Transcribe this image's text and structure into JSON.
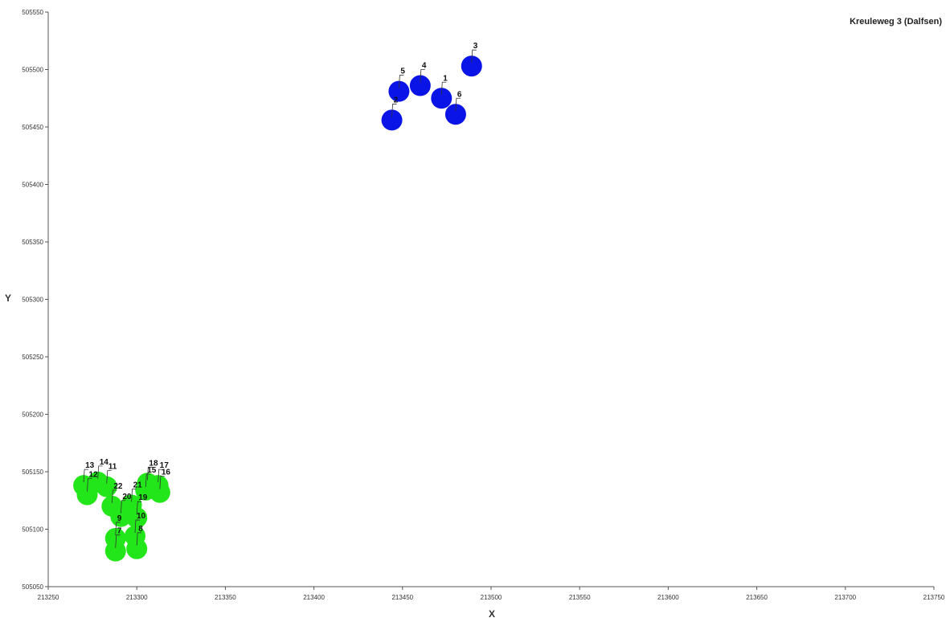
{
  "chart_data": {
    "type": "scatter",
    "title": "Kreuleweg 3 (Dalfsen)",
    "xlabel": "X",
    "ylabel": "Y",
    "xlim": [
      213250,
      213750
    ],
    "ylim": [
      505050,
      505550
    ],
    "xticks": [
      "213250",
      "213300",
      "213350",
      "213400",
      "213450",
      "213500",
      "213550",
      "213600",
      "213650",
      "213700",
      "213750"
    ],
    "yticks": [
      "505050",
      "505100",
      "505150",
      "505200",
      "505250",
      "505300",
      "505350",
      "505400",
      "505450",
      "505500",
      "505550"
    ],
    "grid": false,
    "legend": "none",
    "series": [
      {
        "color": "#0a14e6",
        "points": [
          {
            "label": "1",
            "x": 213472,
            "y": 505475
          },
          {
            "label": "2",
            "x": 213444,
            "y": 505456
          },
          {
            "label": "3",
            "x": 213489,
            "y": 505503
          },
          {
            "label": "4",
            "x": 213460,
            "y": 505486
          },
          {
            "label": "5",
            "x": 213448,
            "y": 505481
          },
          {
            "label": "6",
            "x": 213480,
            "y": 505461
          }
        ]
      },
      {
        "color": "#22e61a",
        "points": [
          {
            "label": "7",
            "x": 213288,
            "y": 505081
          },
          {
            "label": "8",
            "x": 213300,
            "y": 505083
          },
          {
            "label": "9",
            "x": 213288,
            "y": 505092
          },
          {
            "label": "10",
            "x": 213299,
            "y": 505094
          },
          {
            "label": "11",
            "x": 213283,
            "y": 505137
          },
          {
            "label": "12",
            "x": 213272,
            "y": 505130
          },
          {
            "label": "13",
            "x": 213270,
            "y": 505138
          },
          {
            "label": "14",
            "x": 213278,
            "y": 505141
          },
          {
            "label": "15",
            "x": 213305,
            "y": 505134
          },
          {
            "label": "16",
            "x": 213313,
            "y": 505132
          },
          {
            "label": "17",
            "x": 213312,
            "y": 505138
          },
          {
            "label": "18",
            "x": 213306,
            "y": 505140
          },
          {
            "label": "19",
            "x": 213300,
            "y": 505110
          },
          {
            "label": "20",
            "x": 213291,
            "y": 505111
          },
          {
            "label": "21",
            "x": 213297,
            "y": 505121
          },
          {
            "label": "22",
            "x": 213286,
            "y": 505120
          }
        ]
      }
    ]
  }
}
